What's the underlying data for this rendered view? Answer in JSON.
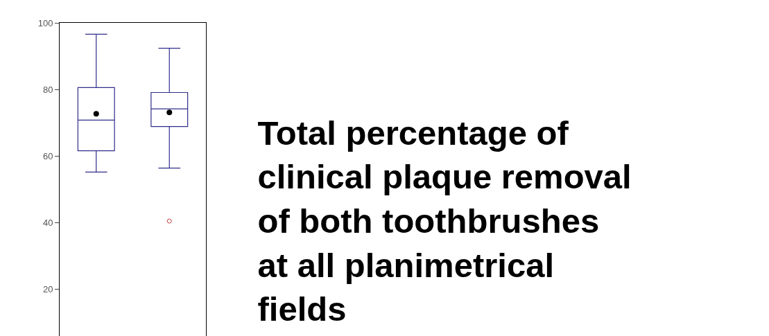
{
  "chart_data": {
    "type": "box",
    "title": "Total percentage of\nclinical plaque removal\nof both toothbrushes\nat all planimetrical\nfields",
    "categories": [
      null,
      null
    ],
    "series": [
      {
        "color": "#2e2e8c",
        "boxes": [
          {
            "low": 55.2,
            "q1": 61.6,
            "median": 70.8,
            "q3": 80.6,
            "high": 96.6,
            "mean": 72.7
          },
          {
            "low": 56.4,
            "q1": 68.9,
            "median": 74.2,
            "q3": 79.1,
            "high": 92.4,
            "mean": 73.1,
            "outliers": [
              40.5
            ]
          }
        ]
      }
    ],
    "ylim": [
      6,
      100
    ],
    "yticks": [
      20,
      40,
      60,
      80,
      100
    ],
    "tick_labels": "y"
  }
}
